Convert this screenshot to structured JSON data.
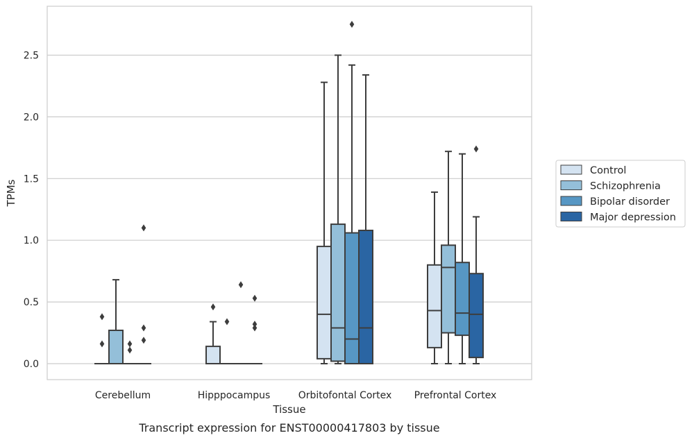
{
  "caption": "Transcript expression for ENST00000417803 by tissue",
  "chart_data": {
    "type": "box",
    "xlabel": "Tissue",
    "ylabel": "TPMs",
    "ylim": [
      -0.13,
      2.9
    ],
    "yticks": [
      0.0,
      0.5,
      1.0,
      1.5,
      2.0,
      2.5
    ],
    "ytick_labels": [
      "0.0",
      "0.5",
      "1.0",
      "1.5",
      "2.0",
      "2.5"
    ],
    "grid": "horizontal",
    "legend_position": "right",
    "categories": [
      "Cerebellum",
      "Hipppocampus",
      "Orbitofontal Cortex",
      "Prefrontal Cortex"
    ],
    "series": [
      {
        "name": "Control",
        "color": "#d4e3f1",
        "boxes": [
          {
            "q1": 0,
            "median": 0,
            "q3": 0,
            "whislo": 0,
            "whishi": 0,
            "fliers": [
              0.16,
              0.38
            ]
          },
          {
            "q1": 0,
            "median": 0,
            "q3": 0.14,
            "whislo": 0,
            "whishi": 0.34,
            "fliers": [
              0.46
            ]
          },
          {
            "q1": 0.04,
            "median": 0.4,
            "q3": 0.95,
            "whislo": 0,
            "whishi": 2.28,
            "fliers": []
          },
          {
            "q1": 0.13,
            "median": 0.43,
            "q3": 0.8,
            "whislo": 0,
            "whishi": 1.39,
            "fliers": []
          }
        ]
      },
      {
        "name": "Schizophrenia",
        "color": "#94bfd9",
        "boxes": [
          {
            "q1": 0,
            "median": 0,
            "q3": 0.27,
            "whislo": 0,
            "whishi": 0.68,
            "fliers": []
          },
          {
            "q1": 0,
            "median": 0,
            "q3": 0,
            "whislo": 0,
            "whishi": 0,
            "fliers": [
              0.34
            ]
          },
          {
            "q1": 0.02,
            "median": 0.29,
            "q3": 1.13,
            "whislo": 0,
            "whishi": 2.5,
            "fliers": []
          },
          {
            "q1": 0.25,
            "median": 0.78,
            "q3": 0.96,
            "whislo": 0,
            "whishi": 1.72,
            "fliers": []
          }
        ]
      },
      {
        "name": "Bipolar disorder",
        "color": "#5797c4",
        "boxes": [
          {
            "q1": 0,
            "median": 0,
            "q3": 0,
            "whislo": 0,
            "whishi": 0,
            "fliers": [
              0.11,
              0.16
            ]
          },
          {
            "q1": 0,
            "median": 0,
            "q3": 0,
            "whislo": 0,
            "whishi": 0,
            "fliers": [
              0.64
            ]
          },
          {
            "q1": 0,
            "median": 0.2,
            "q3": 1.06,
            "whislo": 0,
            "whishi": 2.42,
            "fliers": [
              2.75
            ]
          },
          {
            "q1": 0.23,
            "median": 0.41,
            "q3": 0.82,
            "whislo": 0,
            "whishi": 1.7,
            "fliers": []
          }
        ]
      },
      {
        "name": "Major depression",
        "color": "#2a65a3",
        "boxes": [
          {
            "q1": 0,
            "median": 0,
            "q3": 0,
            "whislo": 0,
            "whishi": 0,
            "fliers": [
              0.19,
              0.29,
              1.1
            ]
          },
          {
            "q1": 0,
            "median": 0,
            "q3": 0,
            "whislo": 0,
            "whishi": 0,
            "fliers": [
              0.29,
              0.32,
              0.53
            ]
          },
          {
            "q1": 0,
            "median": 0.29,
            "q3": 1.08,
            "whislo": 0,
            "whishi": 2.34,
            "fliers": []
          },
          {
            "q1": 0.05,
            "median": 0.4,
            "q3": 0.73,
            "whislo": 0,
            "whishi": 1.19,
            "fliers": [
              1.74
            ]
          }
        ]
      }
    ]
  }
}
